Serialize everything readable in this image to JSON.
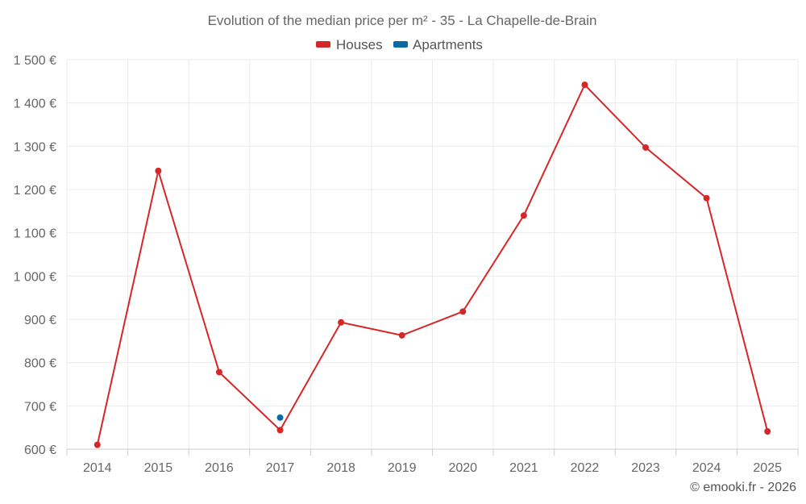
{
  "chart_data": {
    "type": "line",
    "title": "Evolution of the median price per m² - 35 - La Chapelle-de-Brain",
    "categories": [
      "2014",
      "2015",
      "2016",
      "2017",
      "2018",
      "2019",
      "2020",
      "2021",
      "2022",
      "2023",
      "2024",
      "2025"
    ],
    "series": [
      {
        "name": "Houses",
        "color": "#d62728",
        "values": [
          610,
          1243,
          778,
          644,
          893,
          863,
          918,
          1140,
          1442,
          1297,
          1180,
          641
        ]
      },
      {
        "name": "Apartments",
        "color": "#0a6aa1",
        "values": [
          null,
          null,
          null,
          673,
          null,
          null,
          null,
          null,
          null,
          null,
          null,
          null
        ]
      }
    ],
    "ylim": [
      600,
      1500
    ],
    "yticks": [
      600,
      700,
      800,
      900,
      1000,
      1100,
      1200,
      1300,
      1400,
      1500
    ],
    "ytick_labels": [
      "600 €",
      "700 €",
      "800 €",
      "900 €",
      "1 000 €",
      "1 100 €",
      "1 200 €",
      "1 300 €",
      "1 400 €",
      "1 500 €"
    ],
    "xlabel": "",
    "ylabel": "",
    "grid": true,
    "legend_position": "top-center"
  },
  "credit": "© emooki.fr - 2026"
}
